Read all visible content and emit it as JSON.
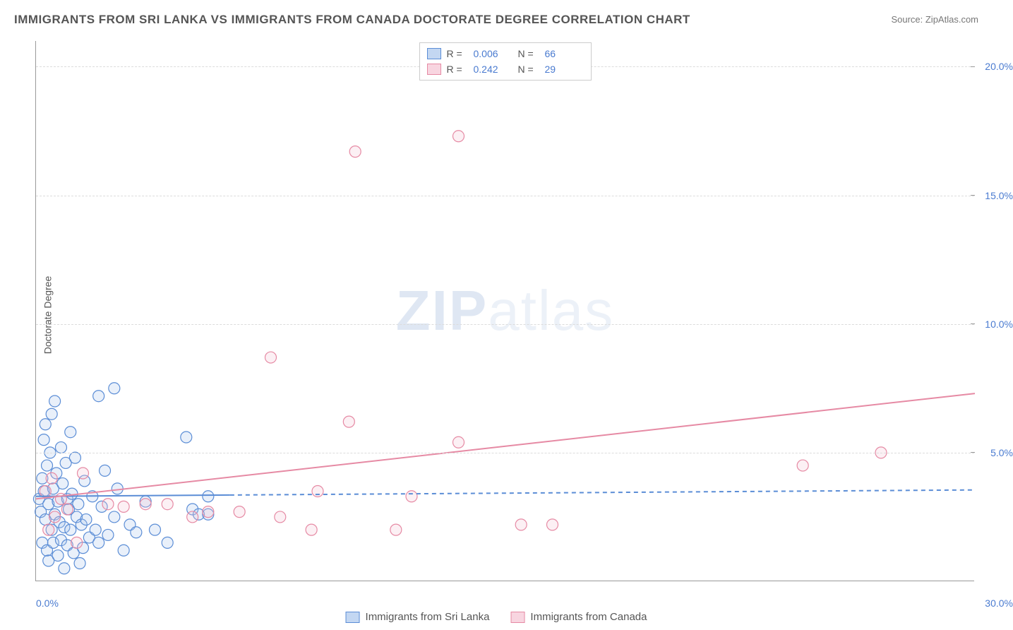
{
  "title": "IMMIGRANTS FROM SRI LANKA VS IMMIGRANTS FROM CANADA DOCTORATE DEGREE CORRELATION CHART",
  "source": "Source: ZipAtlas.com",
  "y_axis_title": "Doctorate Degree",
  "watermark_a": "ZIP",
  "watermark_b": "atlas",
  "chart": {
    "type": "scatter",
    "xlim": [
      0,
      30
    ],
    "ylim": [
      0,
      21
    ],
    "x_ticks": [
      {
        "v": 0,
        "label": "0.0%"
      },
      {
        "v": 30,
        "label": "30.0%"
      }
    ],
    "y_ticks": [
      {
        "v": 5,
        "label": "5.0%"
      },
      {
        "v": 10,
        "label": "10.0%"
      },
      {
        "v": 15,
        "label": "15.0%"
      },
      {
        "v": 20,
        "label": "20.0%"
      }
    ],
    "background_color": "#ffffff",
    "grid_color": "#dcdcdc",
    "marker_radius": 8,
    "marker_stroke_width": 1.2,
    "marker_fill_opacity": 0.25,
    "line_width": 2,
    "series": [
      {
        "name": "Immigrants from Sri Lanka",
        "color_stroke": "#5b8dd6",
        "color_fill": "#a8c5ed",
        "swatch_fill": "#c3d7f2",
        "swatch_border": "#5b8dd6",
        "r_value": "0.006",
        "n_value": "66",
        "trend": {
          "x1": 0,
          "y1": 3.3,
          "x2_solid": 6.2,
          "x2": 30,
          "y2": 3.55
        },
        "points": [
          [
            0.1,
            3.2
          ],
          [
            0.15,
            2.7
          ],
          [
            0.2,
            4.0
          ],
          [
            0.2,
            1.5
          ],
          [
            0.25,
            3.5
          ],
          [
            0.25,
            5.5
          ],
          [
            0.3,
            2.4
          ],
          [
            0.3,
            6.1
          ],
          [
            0.35,
            1.2
          ],
          [
            0.35,
            4.5
          ],
          [
            0.4,
            3.0
          ],
          [
            0.4,
            0.8
          ],
          [
            0.45,
            5.0
          ],
          [
            0.5,
            2.0
          ],
          [
            0.5,
            6.5
          ],
          [
            0.55,
            1.5
          ],
          [
            0.55,
            3.6
          ],
          [
            0.6,
            2.6
          ],
          [
            0.6,
            7.0
          ],
          [
            0.65,
            4.2
          ],
          [
            0.7,
            1.0
          ],
          [
            0.7,
            3.1
          ],
          [
            0.75,
            2.3
          ],
          [
            0.8,
            5.2
          ],
          [
            0.8,
            1.6
          ],
          [
            0.85,
            3.8
          ],
          [
            0.9,
            2.1
          ],
          [
            0.9,
            0.5
          ],
          [
            0.95,
            4.6
          ],
          [
            1.0,
            3.2
          ],
          [
            1.0,
            1.4
          ],
          [
            1.05,
            2.8
          ],
          [
            1.1,
            5.8
          ],
          [
            1.1,
            2.0
          ],
          [
            1.15,
            3.4
          ],
          [
            1.2,
            1.1
          ],
          [
            1.25,
            4.8
          ],
          [
            1.3,
            2.5
          ],
          [
            1.35,
            3.0
          ],
          [
            1.4,
            0.7
          ],
          [
            1.45,
            2.2
          ],
          [
            1.5,
            1.3
          ],
          [
            1.55,
            3.9
          ],
          [
            1.6,
            2.4
          ],
          [
            1.7,
            1.7
          ],
          [
            1.8,
            3.3
          ],
          [
            1.9,
            2.0
          ],
          [
            2.0,
            7.2
          ],
          [
            2.0,
            1.5
          ],
          [
            2.1,
            2.9
          ],
          [
            2.2,
            4.3
          ],
          [
            2.3,
            1.8
          ],
          [
            2.5,
            2.5
          ],
          [
            2.6,
            3.6
          ],
          [
            2.5,
            7.5
          ],
          [
            2.8,
            1.2
          ],
          [
            3.0,
            2.2
          ],
          [
            3.2,
            1.9
          ],
          [
            3.5,
            3.1
          ],
          [
            3.8,
            2.0
          ],
          [
            4.2,
            1.5
          ],
          [
            4.8,
            5.6
          ],
          [
            5.0,
            2.8
          ],
          [
            5.2,
            2.6
          ],
          [
            5.5,
            2.6
          ],
          [
            5.5,
            3.3
          ]
        ]
      },
      {
        "name": "Immigrants from Canada",
        "color_stroke": "#e68aa4",
        "color_fill": "#f5c5d3",
        "swatch_fill": "#f8d5e0",
        "swatch_border": "#e68aa4",
        "r_value": "0.242",
        "n_value": "29",
        "trend": {
          "x1": 0,
          "y1": 3.2,
          "x2_solid": 30,
          "x2": 30,
          "y2": 7.3
        },
        "points": [
          [
            0.3,
            3.5
          ],
          [
            0.4,
            2.0
          ],
          [
            0.5,
            4.0
          ],
          [
            0.6,
            2.5
          ],
          [
            0.8,
            3.2
          ],
          [
            1.0,
            2.8
          ],
          [
            1.3,
            1.5
          ],
          [
            1.5,
            4.2
          ],
          [
            2.3,
            3.0
          ],
          [
            2.8,
            2.9
          ],
          [
            3.5,
            3.0
          ],
          [
            4.2,
            3.0
          ],
          [
            5.0,
            2.5
          ],
          [
            5.5,
            2.7
          ],
          [
            6.5,
            2.7
          ],
          [
            7.5,
            8.7
          ],
          [
            7.8,
            2.5
          ],
          [
            8.8,
            2.0
          ],
          [
            9.0,
            3.5
          ],
          [
            10.0,
            6.2
          ],
          [
            10.2,
            16.7
          ],
          [
            11.5,
            2.0
          ],
          [
            12.0,
            3.3
          ],
          [
            13.5,
            17.3
          ],
          [
            13.5,
            5.4
          ],
          [
            15.5,
            2.2
          ],
          [
            16.5,
            2.2
          ],
          [
            24.5,
            4.5
          ],
          [
            27.0,
            5.0
          ]
        ]
      }
    ]
  },
  "legend_bottom": [
    {
      "series_idx": 0
    },
    {
      "series_idx": 1
    }
  ]
}
